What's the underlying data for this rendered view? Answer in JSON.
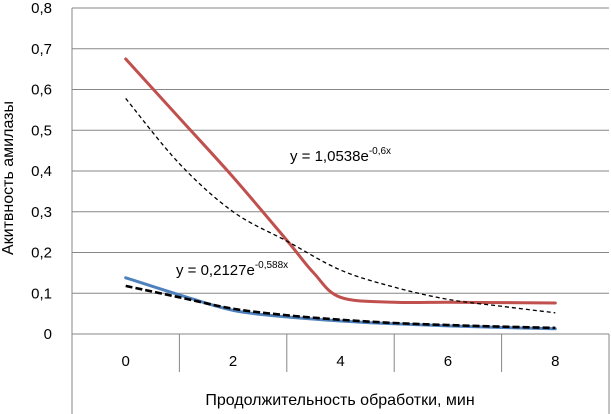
{
  "chart_data": {
    "type": "line",
    "title": "",
    "ylabel": "Акитвность амилазы",
    "xlabel": "Продолжительность обработки, мин",
    "categories": [
      "0",
      "2",
      "4",
      "6",
      "8"
    ],
    "ylim": [
      0,
      0.8
    ],
    "y_ticks": [
      "0",
      "0,1",
      "0,2",
      "0,3",
      "0,4",
      "0,5",
      "0,6",
      "0,7",
      "0,8"
    ],
    "grid": true,
    "series": [
      {
        "color": "#c0504d",
        "style": "solid",
        "x": [
          0,
          1,
          2,
          3,
          3.5,
          4,
          5,
          6,
          7,
          8
        ],
        "values": [
          0.675,
          0.53,
          0.385,
          0.23,
          0.15,
          0.09,
          0.078,
          0.078,
          0.077,
          0.076
        ]
      },
      {
        "color": "#4f81bd",
        "style": "solid",
        "x": [
          0,
          1,
          2,
          3,
          4,
          5,
          6,
          7,
          8
        ],
        "values": [
          0.138,
          0.096,
          0.058,
          0.042,
          0.032,
          0.025,
          0.02,
          0.016,
          0.013
        ]
      },
      {
        "color": "#000000",
        "style": "dashed-thin",
        "x": [
          0,
          1,
          2,
          3,
          4,
          5,
          6,
          7,
          8
        ],
        "values": [
          0.578,
          0.418,
          0.3,
          0.228,
          0.157,
          0.115,
          0.085,
          0.068,
          0.052
        ]
      },
      {
        "color": "#000000",
        "style": "dashed-bold",
        "x": [
          0,
          1,
          2,
          3,
          4,
          5,
          6,
          7,
          8
        ],
        "values": [
          0.118,
          0.09,
          0.062,
          0.046,
          0.035,
          0.027,
          0.022,
          0.018,
          0.015
        ]
      }
    ],
    "annotations": [
      {
        "base": "y = 1,0538e",
        "exponent": "-0,6x",
        "near": "upper-right"
      },
      {
        "base": "y = 0,2127e",
        "exponent": "-0,588x",
        "near": "lower-left"
      }
    ]
  }
}
